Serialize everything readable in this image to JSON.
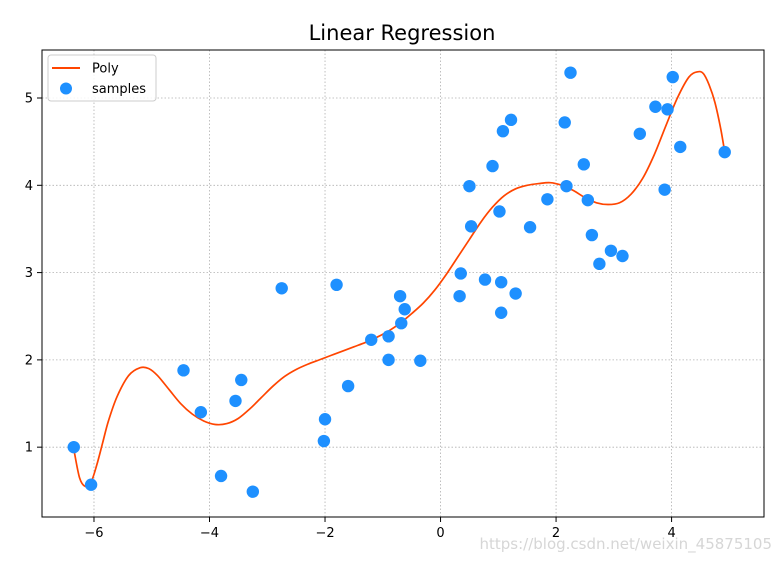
{
  "chart_data": {
    "type": "scatter",
    "title": "Linear Regression",
    "xlabel": "",
    "ylabel": "",
    "xlim": [
      -6.9,
      5.6
    ],
    "ylim": [
      0.2,
      5.55
    ],
    "xticks": [
      -6,
      -4,
      -2,
      0,
      2,
      4
    ],
    "xtick_labels": [
      "−6",
      "−4",
      "−2",
      "0",
      "2",
      "4"
    ],
    "yticks": [
      1,
      2,
      3,
      4,
      5
    ],
    "ytick_labels": [
      "1",
      "2",
      "3",
      "4",
      "5"
    ],
    "grid": true,
    "legend_position": "top-left",
    "series": [
      {
        "name": "Poly",
        "kind": "line",
        "color": "#ff4500",
        "x": [
          -6.35,
          -6.25,
          -6.15,
          -6.05,
          -5.95,
          -5.85,
          -5.75,
          -5.6,
          -5.4,
          -5.2,
          -5.05,
          -4.9,
          -4.7,
          -4.5,
          -4.3,
          -4.1,
          -3.9,
          -3.7,
          -3.5,
          -3.3,
          -3.1,
          -2.9,
          -2.7,
          -2.5,
          -2.3,
          -2.1,
          -1.9,
          -1.7,
          -1.5,
          -1.3,
          -1.1,
          -0.9,
          -0.7,
          -0.5,
          -0.3,
          -0.1,
          0.1,
          0.3,
          0.5,
          0.7,
          0.9,
          1.1,
          1.3,
          1.5,
          1.7,
          1.9,
          2.1,
          2.3,
          2.5,
          2.7,
          2.9,
          3.1,
          3.3,
          3.5,
          3.7,
          3.9,
          4.1,
          4.3,
          4.45,
          4.55,
          4.65,
          4.75,
          4.85,
          4.92
        ],
        "y": [
          0.98,
          0.65,
          0.55,
          0.6,
          0.8,
          1.05,
          1.3,
          1.58,
          1.82,
          1.91,
          1.9,
          1.82,
          1.66,
          1.5,
          1.38,
          1.3,
          1.26,
          1.27,
          1.33,
          1.44,
          1.57,
          1.7,
          1.81,
          1.89,
          1.95,
          2.0,
          2.05,
          2.1,
          2.15,
          2.2,
          2.26,
          2.33,
          2.42,
          2.53,
          2.65,
          2.8,
          2.98,
          3.18,
          3.38,
          3.58,
          3.75,
          3.88,
          3.96,
          4.0,
          4.02,
          4.03,
          4.0,
          3.94,
          3.86,
          3.8,
          3.78,
          3.8,
          3.9,
          4.08,
          4.35,
          4.68,
          5.0,
          5.24,
          5.3,
          5.28,
          5.15,
          4.95,
          4.65,
          4.38
        ]
      },
      {
        "name": "samples",
        "kind": "scatter",
        "color": "#1e90ff",
        "x": [
          -6.35,
          -6.05,
          -4.45,
          -4.15,
          -3.8,
          -3.55,
          -3.45,
          -3.25,
          -2.75,
          -2.0,
          -2.02,
          -1.8,
          -1.6,
          -1.2,
          -0.9,
          -0.9,
          -0.7,
          -0.68,
          -0.62,
          -0.35,
          0.33,
          0.35,
          0.5,
          0.53,
          0.77,
          0.9,
          1.02,
          1.05,
          1.05,
          1.08,
          1.22,
          1.3,
          1.55,
          1.85,
          2.15,
          2.18,
          2.25,
          2.48,
          2.55,
          2.62,
          2.75,
          2.95,
          3.15,
          3.45,
          3.72,
          3.88,
          3.93,
          4.02,
          4.15,
          4.92
        ],
        "y": [
          1.0,
          0.57,
          1.88,
          1.4,
          0.67,
          1.53,
          1.77,
          0.49,
          2.82,
          1.32,
          1.07,
          2.86,
          1.7,
          2.23,
          2.0,
          2.27,
          2.73,
          2.42,
          2.58,
          1.99,
          2.73,
          2.99,
          3.99,
          3.53,
          2.92,
          4.22,
          3.7,
          2.54,
          2.89,
          4.62,
          4.75,
          2.76,
          3.52,
          3.84,
          4.72,
          3.99,
          5.29,
          4.24,
          3.83,
          3.43,
          3.1,
          3.25,
          3.19,
          4.59,
          4.9,
          3.95,
          4.87,
          5.24,
          4.44,
          4.38
        ]
      }
    ]
  },
  "watermark": "https://blog.csdn.net/weixin_45875105"
}
